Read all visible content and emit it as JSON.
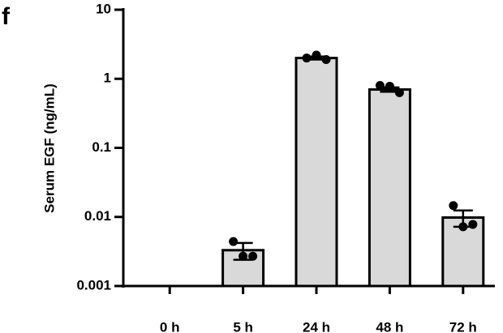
{
  "panel_label": "f",
  "chart_data": {
    "type": "bar",
    "ylabel": "Serum EGF (ng/mL)",
    "categories": [
      "0 h",
      "5 h",
      "24 h",
      "48 h",
      "72 h"
    ],
    "values": [
      null,
      0.0033,
      2.0,
      0.7,
      0.0098
    ],
    "errors": [
      null,
      0.0009,
      0.1,
      0.05,
      0.0026
    ],
    "points": [
      null,
      [
        0.0044,
        0.0027,
        0.0027
      ],
      [
        2.0,
        2.2,
        1.9
      ],
      [
        0.8,
        0.78,
        0.63
      ],
      [
        0.0146,
        0.0072,
        0.0078
      ]
    ],
    "color": "#d9d9d9",
    "log_y": true,
    "ylim": [
      0.001,
      10
    ],
    "yticks": [
      0.001,
      0.01,
      0.1,
      1,
      10
    ]
  }
}
